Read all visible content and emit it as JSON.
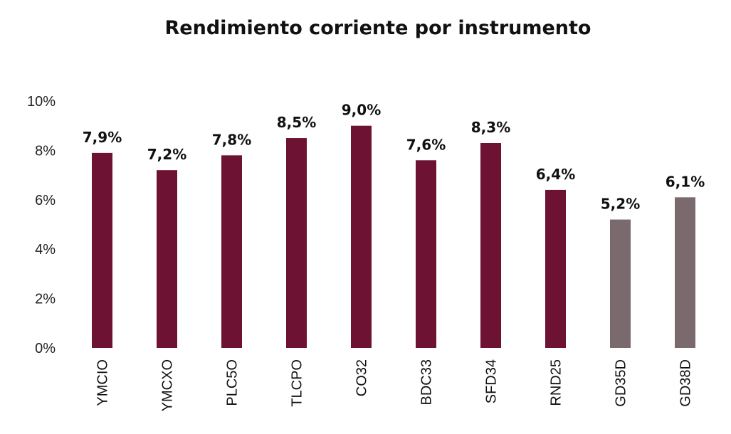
{
  "chart_data": {
    "type": "bar",
    "title": "Rendimiento corriente por instrumento",
    "categories": [
      "YMCIO",
      "YMCXO",
      "PLC5O",
      "TLCPO",
      "CO32",
      "BDC33",
      "SFD34",
      "RND25",
      "GD35D",
      "GD38D"
    ],
    "values": [
      7.9,
      7.2,
      7.8,
      8.5,
      9.0,
      7.6,
      8.3,
      6.4,
      5.2,
      6.1
    ],
    "data_labels": [
      "7,9%",
      "7,2%",
      "7,8%",
      "8,5%",
      "9,0%",
      "7,6%",
      "8,3%",
      "6,4%",
      "5,2%",
      "6,1%"
    ],
    "ytick_values": [
      0,
      2,
      4,
      6,
      8,
      10
    ],
    "ytick_labels": [
      "0%",
      "2%",
      "4%",
      "6%",
      "8%",
      "10%"
    ],
    "ylim": [
      0,
      10
    ],
    "grid": false,
    "legend": "none",
    "bar_colors": [
      "#6e1233",
      "#6e1233",
      "#6e1233",
      "#6e1233",
      "#6e1233",
      "#6e1233",
      "#6e1233",
      "#6e1233",
      "#7a6a6d",
      "#7a6a6d"
    ]
  }
}
